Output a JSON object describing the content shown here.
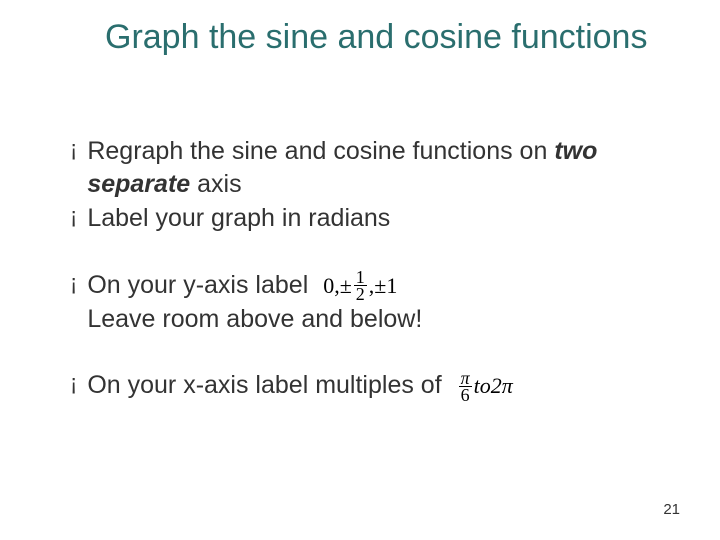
{
  "title": "Graph the sine and cosine functions",
  "title_color": "#2a6e6e",
  "title_fontsize": 34,
  "body_fontsize": 25,
  "body_color": "#333333",
  "bullet_mark": "¡",
  "bullets": {
    "b1_prefix": "Regraph the sine and cosine functions on ",
    "b1_emph": "two separate",
    "b1_suffix": " axis",
    "b2": "Label your graph in radians",
    "b3_line1": "On your y-axis label ",
    "b3_line2": "Leave room above and below!",
    "b4": "On your x-axis label multiples of "
  },
  "math": {
    "y_axis_label": {
      "zero": "0,",
      "pm1": "±",
      "half_num": "1",
      "half_den": "2",
      "comma": ",",
      "pm2": "±1"
    },
    "x_axis_label": {
      "pi_num": "π",
      "six_den": "6",
      "to_word": " to ",
      "two_pi": "2π"
    }
  },
  "page_number": "21",
  "background_color": "#ffffff"
}
